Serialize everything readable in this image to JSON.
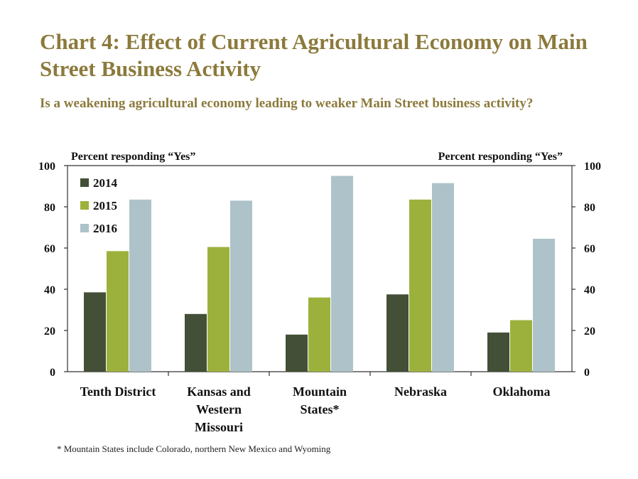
{
  "chart_data": {
    "type": "bar",
    "title": "Chart 4: Effect of Current Agricultural Economy on Main Street Business Activity",
    "subtitle": "Is a weakening agricultural economy leading to weaker Main Street business activity?",
    "ylabel_left": "Percent responding “Yes”",
    "ylabel_right": "Percent responding “Yes”",
    "ylim": [
      0,
      100
    ],
    "yticks": [
      0,
      20,
      40,
      60,
      80,
      100
    ],
    "categories": [
      [
        "Tenth District"
      ],
      [
        "Kansas and",
        "Western",
        "Missouri"
      ],
      [
        "Mountain",
        "States*"
      ],
      [
        "Nebraska"
      ],
      [
        "Oklahoma"
      ]
    ],
    "series": [
      {
        "name": "2014",
        "color": "#434f36",
        "values": [
          38.5,
          28,
          18,
          37.5,
          19
        ]
      },
      {
        "name": "2015",
        "color": "#9cb13c",
        "values": [
          58.5,
          60.5,
          36,
          83.5,
          25
        ]
      },
      {
        "name": "2016",
        "color": "#aec2c9",
        "values": [
          83.5,
          83,
          95,
          91.5,
          64.5
        ]
      }
    ],
    "legend_position": "top-left",
    "grid": false,
    "footnote": "* Mountain States include Colorado, northern New Mexico and Wyoming"
  }
}
